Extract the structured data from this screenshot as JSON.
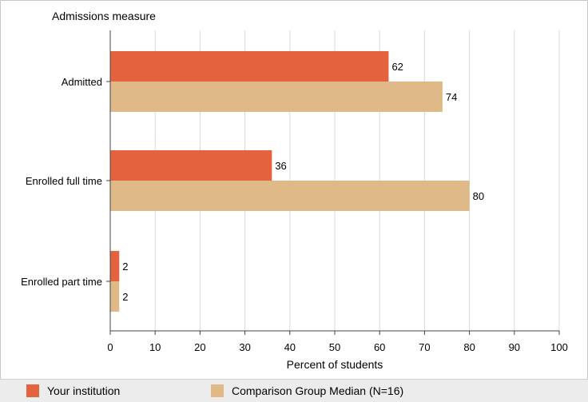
{
  "chart_data": {
    "type": "bar",
    "orientation": "horizontal",
    "title": "Admissions measure",
    "xlabel": "Percent of students",
    "ylabel": "",
    "xlim": [
      0,
      100
    ],
    "xticks": [
      0,
      10,
      20,
      30,
      40,
      50,
      60,
      70,
      80,
      90,
      100
    ],
    "grid": true,
    "legend_position": "bottom",
    "categories": [
      "Admitted",
      "Enrolled full time",
      "Enrolled part time"
    ],
    "series": [
      {
        "name": "Your institution",
        "values": [
          62,
          36,
          2
        ],
        "color": "#e4623e"
      },
      {
        "name": "Comparison Group Median (N=16)",
        "values": [
          74,
          80,
          2
        ],
        "color": "#dfb987"
      }
    ]
  }
}
